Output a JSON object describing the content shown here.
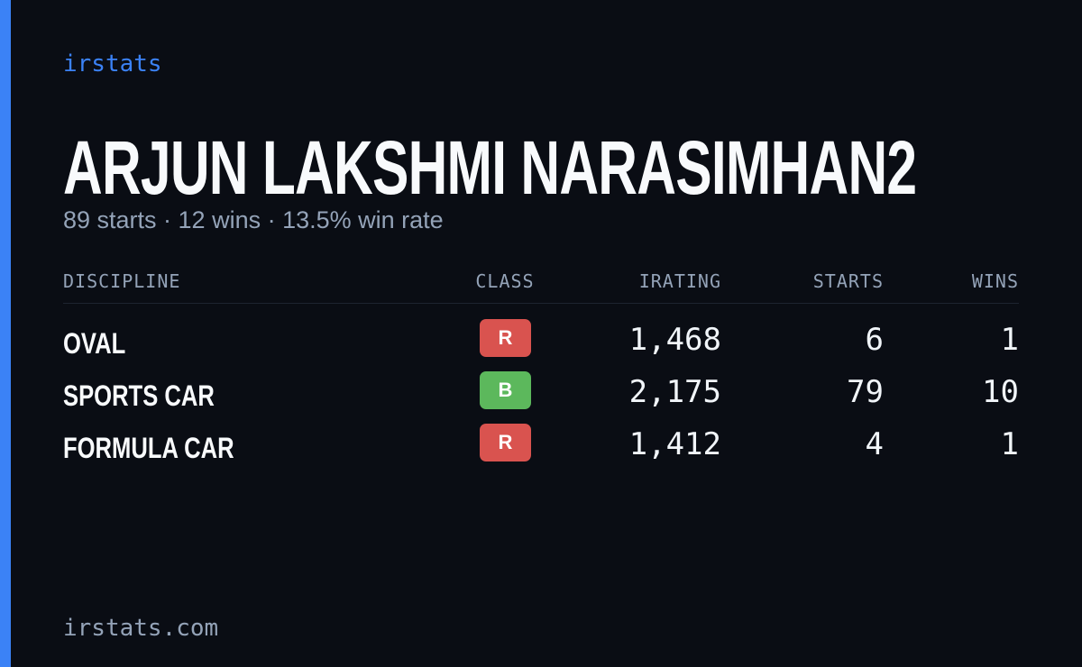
{
  "brand": "irstats",
  "title": "ARJUN LAKSHMI NARASIMHAN2",
  "subtitle": "89 starts · 12 wins · 13.5% win rate",
  "table": {
    "headers": [
      "DISCIPLINE",
      "CLASS",
      "IRATING",
      "STARTS",
      "WINS"
    ],
    "rows": [
      {
        "discipline": "OVAL",
        "class": "R",
        "class_color": "#d9534f",
        "irating": "1,468",
        "starts": "6",
        "wins": "1"
      },
      {
        "discipline": "SPORTS CAR",
        "class": "B",
        "class_color": "#5cb85c",
        "irating": "2,175",
        "starts": "79",
        "wins": "10"
      },
      {
        "discipline": "FORMULA CAR",
        "class": "R",
        "class_color": "#d9534f",
        "irating": "1,412",
        "starts": "4",
        "wins": "1"
      }
    ]
  },
  "footer": "irstats.com"
}
